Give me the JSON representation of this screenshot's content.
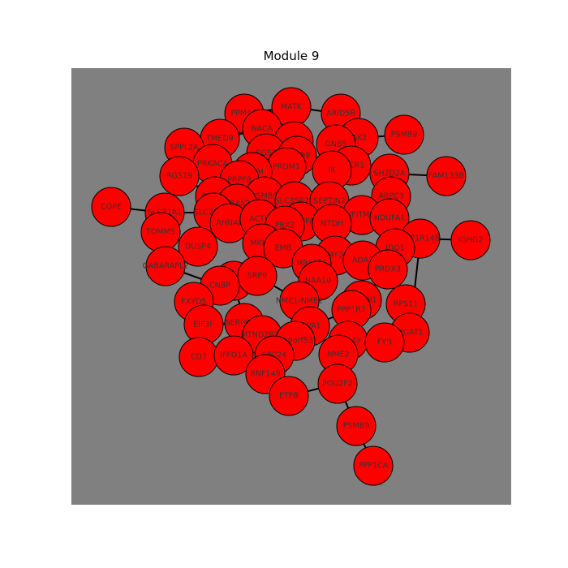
{
  "title": "Module 9",
  "colors": {
    "panel": "#808080",
    "node_fill": "#ff0000",
    "node_stroke": "#000000",
    "edge": "#000000",
    "label": "#333333"
  },
  "nodes": [
    {
      "id": "MATK",
      "label": "MATK"
    },
    {
      "id": "PPM1G",
      "label": "PPM1G"
    },
    {
      "id": "ARID5B",
      "label": "ARID5B"
    },
    {
      "id": "NACA",
      "label": "NACA"
    },
    {
      "id": "PSMB9_a",
      "label": "PSMB9"
    },
    {
      "id": "JAK1",
      "label": "JAK1"
    },
    {
      "id": "TMED9",
      "label": "TMED9"
    },
    {
      "id": "JAML",
      "label": "JAML"
    },
    {
      "id": "GNB5",
      "label": "GNB5"
    },
    {
      "id": "SPPL2A",
      "label": "SPPL2A"
    },
    {
      "id": "RGS1",
      "label": "RGS1"
    },
    {
      "id": "PSMB9_b",
      "label": "PSMB9"
    },
    {
      "id": "PRDM1",
      "label": "PRDM1"
    },
    {
      "id": "PRKACA",
      "label": "PRKACA"
    },
    {
      "id": "DECR1",
      "label": "DECR1"
    },
    {
      "id": "FAM133B",
      "label": "FAM133B"
    },
    {
      "id": "IK",
      "label": "IK"
    },
    {
      "id": "SH2D2A",
      "label": "SH2D2A"
    },
    {
      "id": "CREM",
      "label": "CREM"
    },
    {
      "id": "RGS19",
      "label": "RGS19"
    },
    {
      "id": "PRPF8",
      "label": "PRPF8"
    },
    {
      "id": "PSMB9_c",
      "label": "PSMB9"
    },
    {
      "id": "PSMB9_d",
      "label": "PSMB9"
    },
    {
      "id": "SLC35E2B",
      "label": "SLC35E2B"
    },
    {
      "id": "SEPTIN2",
      "label": "SEPTIN2"
    },
    {
      "id": "ARPC3",
      "label": "ARPC3"
    },
    {
      "id": "COPE",
      "label": "COPE"
    },
    {
      "id": "UBA52",
      "label": "UBA52"
    },
    {
      "id": "SLC31A1",
      "label": "SLC31A1"
    },
    {
      "id": "SLC25A37",
      "label": "SLC25A37"
    },
    {
      "id": "IFITM2",
      "label": "IFITM2"
    },
    {
      "id": "NDUFA1",
      "label": "NDUFA1"
    },
    {
      "id": "HNRNPA3",
      "label": "HNRNPA3"
    },
    {
      "id": "AHNAK",
      "label": "AHNAK"
    },
    {
      "id": "ACTB",
      "label": "ACTB"
    },
    {
      "id": "PBX2",
      "label": "PBX2"
    },
    {
      "id": "MTDH",
      "label": "MTDH"
    },
    {
      "id": "TOMM5",
      "label": "TOMM5"
    },
    {
      "id": "PPP1R14B",
      "label": "PPP1R14B"
    },
    {
      "id": "IGHG2",
      "label": "IGHG2"
    },
    {
      "id": "DUSP4",
      "label": "DUSP4"
    },
    {
      "id": "MKI67",
      "label": "MKI67"
    },
    {
      "id": "EMB",
      "label": "EMB"
    },
    {
      "id": "TERF2IP",
      "label": "TERF2IP"
    },
    {
      "id": "IDO1",
      "label": "IDO1"
    },
    {
      "id": "GABARAPL2",
      "label": "GABARAPL2"
    },
    {
      "id": "MRFAP1",
      "label": "MRFAP1"
    },
    {
      "id": "ADA2",
      "label": "ADA2"
    },
    {
      "id": "PRDX3",
      "label": "PRDX3"
    },
    {
      "id": "ISCU",
      "label": "ISCU"
    },
    {
      "id": "SRP9",
      "label": "SRP9"
    },
    {
      "id": "CNBP",
      "label": "CNBP"
    },
    {
      "id": "NAA10",
      "label": "NAA10"
    },
    {
      "id": "FXYD5",
      "label": "FXYD5"
    },
    {
      "id": "NME1-NME2",
      "label": "NME1-NME2"
    },
    {
      "id": "PPHLN1",
      "label": "PPHLN1"
    },
    {
      "id": "RPS11",
      "label": "RPS11"
    },
    {
      "id": "PPP1R7",
      "label": "PPP1R7"
    },
    {
      "id": "SERPINB9",
      "label": "SERPINB9"
    },
    {
      "id": "EIF3F",
      "label": "EIF3F"
    },
    {
      "id": "MTND2P28",
      "label": "MTND2P28"
    },
    {
      "id": "SIVA1",
      "label": "SIVA1"
    },
    {
      "id": "MGAT1",
      "label": "MGAT1"
    },
    {
      "id": "C19orf53",
      "label": "C19orf53"
    },
    {
      "id": "EIF1AY",
      "label": "EIF1AY"
    },
    {
      "id": "FYN",
      "label": "FYN"
    },
    {
      "id": "CD7",
      "label": "CD7"
    },
    {
      "id": "IFFO1A",
      "label": "IFFO1A"
    },
    {
      "id": "SPC24",
      "label": "SPC24"
    },
    {
      "id": "NME2",
      "label": "NME2"
    },
    {
      "id": "RNF149",
      "label": "RNF149"
    },
    {
      "id": "POU2F2",
      "label": "POU2F2"
    },
    {
      "id": "ETFB",
      "label": "ETFB"
    },
    {
      "id": "PSMB9_e",
      "label": "PSMB9"
    },
    {
      "id": "PPP1CA",
      "label": "PPP1CA"
    }
  ],
  "edges": [
    [
      "PPM1G",
      "MATK"
    ],
    [
      "MATK",
      "ARID5B"
    ],
    [
      "ARID5B",
      "JAK1"
    ],
    [
      "JAK1",
      "PSMB9_a"
    ],
    [
      "PPM1G",
      "NACA"
    ],
    [
      "NACA",
      "TMED9"
    ],
    [
      "TMED9",
      "SPPL2A"
    ],
    [
      "JAML",
      "PSMB9_b"
    ],
    [
      "GNB5",
      "DECR1"
    ],
    [
      "DECR1",
      "SH2D2A"
    ],
    [
      "SH2D2A",
      "FAM133B"
    ],
    [
      "SH2D2A",
      "ARPC3"
    ],
    [
      "ARPC3",
      "NDUFA1"
    ],
    [
      "NDUFA1",
      "IFITM2"
    ],
    [
      "IFITM2",
      "SEPTIN2"
    ],
    [
      "SEPTIN2",
      "IK"
    ],
    [
      "IK",
      "GNB5"
    ],
    [
      "COPE",
      "SLC31A1"
    ],
    [
      "SLC31A1",
      "TOMM5"
    ],
    [
      "TOMM5",
      "DUSP4"
    ],
    [
      "DUSP4",
      "GABARAPL2"
    ],
    [
      "GABARAPL2",
      "CNBP"
    ],
    [
      "CNBP",
      "ISCU"
    ],
    [
      "ISCU",
      "SRP9"
    ],
    [
      "SRP9",
      "MKI67"
    ],
    [
      "MKI67",
      "EMB"
    ],
    [
      "EMB",
      "MRFAP1"
    ],
    [
      "MRFAP1",
      "TERF2IP"
    ],
    [
      "TERF2IP",
      "ADA2"
    ],
    [
      "ADA2",
      "IDO1"
    ],
    [
      "IDO1",
      "PPP1R14B"
    ],
    [
      "PPP1R14B",
      "IGHG2"
    ],
    [
      "PPP1R14B",
      "MGAT1"
    ],
    [
      "MGAT1",
      "RPS11"
    ],
    [
      "RPS11",
      "FYN"
    ],
    [
      "FYN",
      "EIF1AY"
    ],
    [
      "EIF1AY",
      "NME2"
    ],
    [
      "NME2",
      "POU2F2"
    ],
    [
      "POU2F2",
      "PSMB9_e"
    ],
    [
      "PSMB9_e",
      "PPP1CA"
    ],
    [
      "POU2F2",
      "ETFB"
    ],
    [
      "ETFB",
      "RNF149"
    ],
    [
      "RNF149",
      "SPC24"
    ],
    [
      "SPC24",
      "C19orf53"
    ],
    [
      "C19orf53",
      "SIVA1"
    ],
    [
      "SIVA1",
      "NME1-NME2"
    ],
    [
      "NME1-NME2",
      "NAA10"
    ],
    [
      "NAA10",
      "MRFAP1"
    ],
    [
      "SIVA1",
      "PPP1R7"
    ],
    [
      "PPP1R7",
      "PPHLN1"
    ],
    [
      "PPHLN1",
      "PRDX3"
    ],
    [
      "PRDX3",
      "IDO1"
    ],
    [
      "MTND2P28",
      "SERPINB9"
    ],
    [
      "SERPINB9",
      "EIF3F"
    ],
    [
      "EIF3F",
      "FXYD5"
    ],
    [
      "FXYD5",
      "CNBP"
    ],
    [
      "EIF3F",
      "CD7"
    ],
    [
      "CD7",
      "IFFO1A"
    ],
    [
      "IFFO1A",
      "MTND2P28"
    ],
    [
      "MTND2P28",
      "SPC24"
    ],
    [
      "SLC25A37",
      "AHNAK"
    ],
    [
      "AHNAK",
      "UBA52"
    ],
    [
      "UBA52",
      "PSMB9_c"
    ],
    [
      "PSMB9_c",
      "RGS19"
    ],
    [
      "RGS19",
      "PRKACA"
    ],
    [
      "PRKACA",
      "CREM"
    ],
    [
      "CREM",
      "PRPF8"
    ],
    [
      "PRPF8",
      "PSMB9_d"
    ],
    [
      "PSMB9_d",
      "SLC35E2B"
    ],
    [
      "SLC35E2B",
      "HNRNPA3"
    ],
    [
      "HNRNPA3",
      "MTDH"
    ],
    [
      "MTDH",
      "IFITM2"
    ],
    [
      "PSMB9_d",
      "ACTB"
    ],
    [
      "ACTB",
      "PBX2"
    ],
    [
      "PBX2",
      "HNRNPA3"
    ],
    [
      "RGS1",
      "PRDM1"
    ],
    [
      "PRDM1",
      "PSMB9_b"
    ],
    [
      "RGS1",
      "CREM"
    ],
    [
      "SLC31A1",
      "SLC25A37"
    ],
    [
      "DUSP4",
      "AHNAK"
    ],
    [
      "ACTB",
      "MKI67"
    ],
    [
      "PBX2",
      "EMB"
    ],
    [
      "MTDH",
      "TERF2IP"
    ],
    [
      "TERF2IP",
      "NAA10"
    ],
    [
      "ADA2",
      "PPHLN1"
    ],
    [
      "NDUFA1",
      "IDO1"
    ],
    [
      "IK",
      "DECR1"
    ],
    [
      "JAK1",
      "GNB5"
    ],
    [
      "NACA",
      "RGS1"
    ],
    [
      "JAML",
      "SLC35E2B"
    ],
    [
      "ARPC3",
      "IFITM2"
    ],
    [
      "FYN",
      "MGAT1"
    ],
    [
      "EIF1AY",
      "PPP1R7"
    ],
    [
      "NME2",
      "SIVA1"
    ],
    [
      "SRP9",
      "NME1-NME2"
    ],
    [
      "SERPINB9",
      "ISCU"
    ],
    [
      "TMED9",
      "PRKACA"
    ],
    [
      "SPPL2A",
      "RGS19"
    ],
    [
      "PSMB9_c",
      "UBA52"
    ],
    [
      "CREM",
      "SEPTIN2"
    ]
  ]
}
